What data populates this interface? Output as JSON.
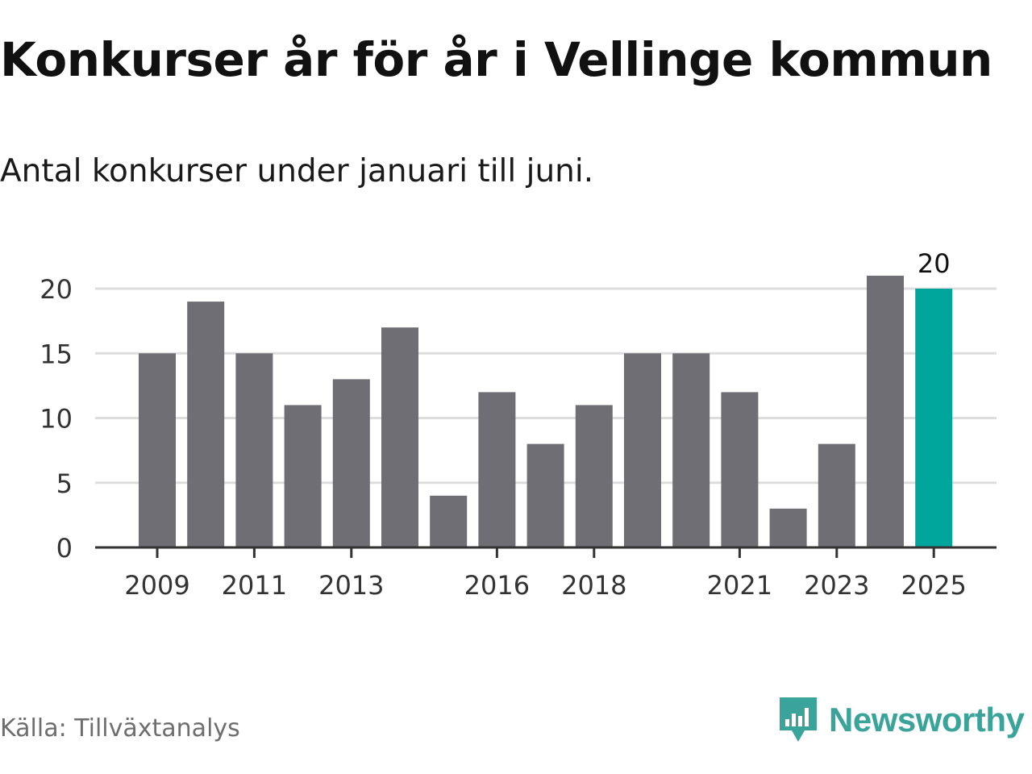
{
  "title": "Konkurser år för år i Vellinge kommun",
  "subtitle": "Antal konkurser under januari till juni.",
  "source": "Källa: Tillväxtanalys",
  "brand": {
    "name": "Newsworthy",
    "color": "#3aa39a",
    "icon": "newsworthy-logo-icon"
  },
  "colors": {
    "bar": "#6f6e74",
    "highlight": "#00a69c",
    "grid": "#dddddd",
    "axis": "#333333",
    "tick_text": "#333333"
  },
  "chart_data": {
    "type": "bar",
    "x": [
      2009,
      2010,
      2011,
      2012,
      2013,
      2014,
      2015,
      2016,
      2017,
      2018,
      2019,
      2020,
      2021,
      2022,
      2023,
      2024,
      2025
    ],
    "values": [
      15,
      19,
      15,
      11,
      13,
      17,
      4,
      12,
      8,
      11,
      15,
      15,
      12,
      3,
      8,
      21,
      20
    ],
    "highlight_index": 16,
    "highlight_label": "20",
    "x_tick_labels": [
      "2009",
      "2011",
      "2013",
      "2016",
      "2018",
      "2021",
      "2023",
      "2025"
    ],
    "y_ticks": [
      0,
      5,
      10,
      15,
      20
    ],
    "ylim": [
      0,
      21
    ],
    "grid": true,
    "legend": "none"
  }
}
